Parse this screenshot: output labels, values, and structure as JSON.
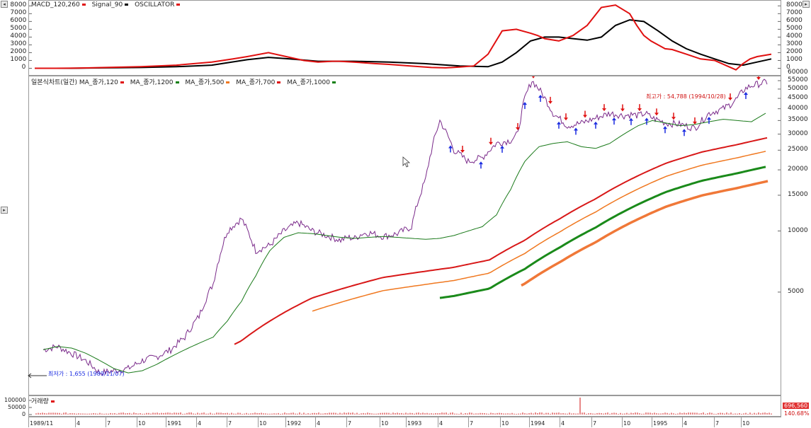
{
  "chart_data": [
    {
      "type": "line",
      "legend": [
        {
          "name": "MACD_120,260",
          "color": "#e01010"
        },
        {
          "name": "Signal_90",
          "color": "#000000"
        },
        {
          "name": "OSCILLATOR",
          "color": "#e01010"
        }
      ],
      "y_ticks": [
        0,
        1000,
        2000,
        3000,
        4000,
        5000,
        6000,
        7000,
        8000
      ],
      "ylim": [
        -500,
        8300
      ],
      "series": [
        {
          "name": "MACD_120,260",
          "color": "#e01010",
          "x": [
            0,
            30,
            60,
            100,
            150,
            200,
            250,
            280,
            300,
            330,
            350,
            380,
            400,
            420,
            430,
            450,
            480,
            500,
            530,
            560,
            580,
            600,
            620,
            640,
            660,
            680,
            700,
            710,
            720,
            740,
            760,
            780,
            800,
            820,
            840,
            850,
            860,
            870,
            880,
            890,
            900,
            920,
            940,
            960,
            980,
            990,
            1000,
            1010,
            1020,
            1040
          ],
          "y": [
            0,
            0,
            20,
            100,
            200,
            400,
            800,
            1200,
            1500,
            2000,
            1600,
            1000,
            800,
            900,
            900,
            800,
            600,
            500,
            300,
            100,
            50,
            150,
            300,
            1800,
            4800,
            5000,
            4500,
            4200,
            3800,
            3500,
            4200,
            5500,
            7800,
            8100,
            7000,
            5500,
            4200,
            3500,
            3000,
            2500,
            2400,
            1800,
            1200,
            1000,
            200,
            -200,
            600,
            1200,
            1500,
            1800
          ]
        },
        {
          "name": "Signal_90",
          "color": "#000000",
          "x": [
            0,
            50,
            100,
            150,
            200,
            250,
            300,
            330,
            360,
            400,
            450,
            500,
            550,
            600,
            640,
            660,
            680,
            700,
            720,
            740,
            760,
            780,
            800,
            820,
            840,
            860,
            880,
            900,
            920,
            940,
            960,
            980,
            1000,
            1020,
            1040
          ],
          "y": [
            0,
            0,
            50,
            100,
            200,
            400,
            1100,
            1400,
            1200,
            900,
            900,
            800,
            600,
            300,
            200,
            800,
            2000,
            3500,
            4000,
            4000,
            3800,
            3600,
            4000,
            5500,
            6200,
            6000,
            4800,
            3500,
            2500,
            1800,
            1200,
            600,
            400,
            800,
            1200
          ]
        }
      ]
    },
    {
      "type": "line",
      "title": "일본식차트(일간)",
      "log_scale": true,
      "y_ticks": [
        5000,
        10000,
        15000,
        20000,
        25000,
        30000,
        35000,
        40000,
        45000,
        50000,
        55000,
        60000
      ],
      "annotations": {
        "high": "최고가 : 54,788 (1994/10/28)",
        "low": "최저가 : 1,655 (1989/11/07)"
      },
      "series": [
        {
          "name": "MA_종가,120",
          "color": "#e01010",
          "x": [
            20,
            40,
            60,
            80,
            100,
            120,
            140,
            160,
            180,
            200,
            220,
            240,
            260,
            280,
            300,
            320,
            340,
            360,
            380,
            400,
            420,
            440,
            460,
            480,
            500,
            520,
            540,
            560,
            580,
            600,
            620,
            640,
            660,
            680,
            700,
            720,
            740,
            760,
            780,
            800,
            820,
            840,
            860,
            880,
            900,
            920,
            940,
            960,
            980,
            1000,
            1020,
            1040
          ],
          "y": [
            2600,
            2700,
            2650,
            2500,
            2300,
            2100,
            2000,
            2050,
            2200,
            2400,
            2600,
            2800,
            3000,
            3600,
            4500,
            6000,
            8000,
            9300,
            9800,
            9700,
            9500,
            9300,
            9200,
            9300,
            9400,
            9300,
            9200,
            9100,
            9200,
            9500,
            10000,
            10500,
            12000,
            16000,
            22000,
            26000,
            27000,
            27500,
            26000,
            25500,
            27000,
            30000,
            33000,
            35000,
            34000,
            33000,
            33500,
            34500,
            35500,
            35000,
            34500,
            38000
          ]
        },
        {
          "name": "MA_종가,1200",
          "color": "#108010",
          "x": [],
          "y": []
        },
        {
          "name": "MA_종가,500",
          "color": "#f07820",
          "x": [],
          "y": []
        },
        {
          "name": "MA_종가,700",
          "color": "#e01010",
          "x": [],
          "y": []
        },
        {
          "name": "MA_종가,1000",
          "color": "#108010",
          "x": [],
          "y": []
        }
      ]
    },
    {
      "type": "bar",
      "title": "거래량",
      "y_ticks": [
        0,
        50000,
        100000
      ],
      "readouts": [
        "696,560",
        "140.68%"
      ]
    }
  ],
  "x_axis": {
    "labels": [
      "1989/11",
      "4",
      "7",
      "10",
      "1991",
      "4",
      "7",
      "10",
      "1992",
      "4",
      "7",
      "10",
      "1993",
      "4",
      "7",
      "10",
      "1994",
      "4",
      "7",
      "10",
      "1995",
      "4",
      "7",
      "10"
    ]
  },
  "colors": {
    "macd": "#e01010",
    "signal": "#000000",
    "up_arrow": "#e01010",
    "down_arrow": "#1a2be0"
  }
}
